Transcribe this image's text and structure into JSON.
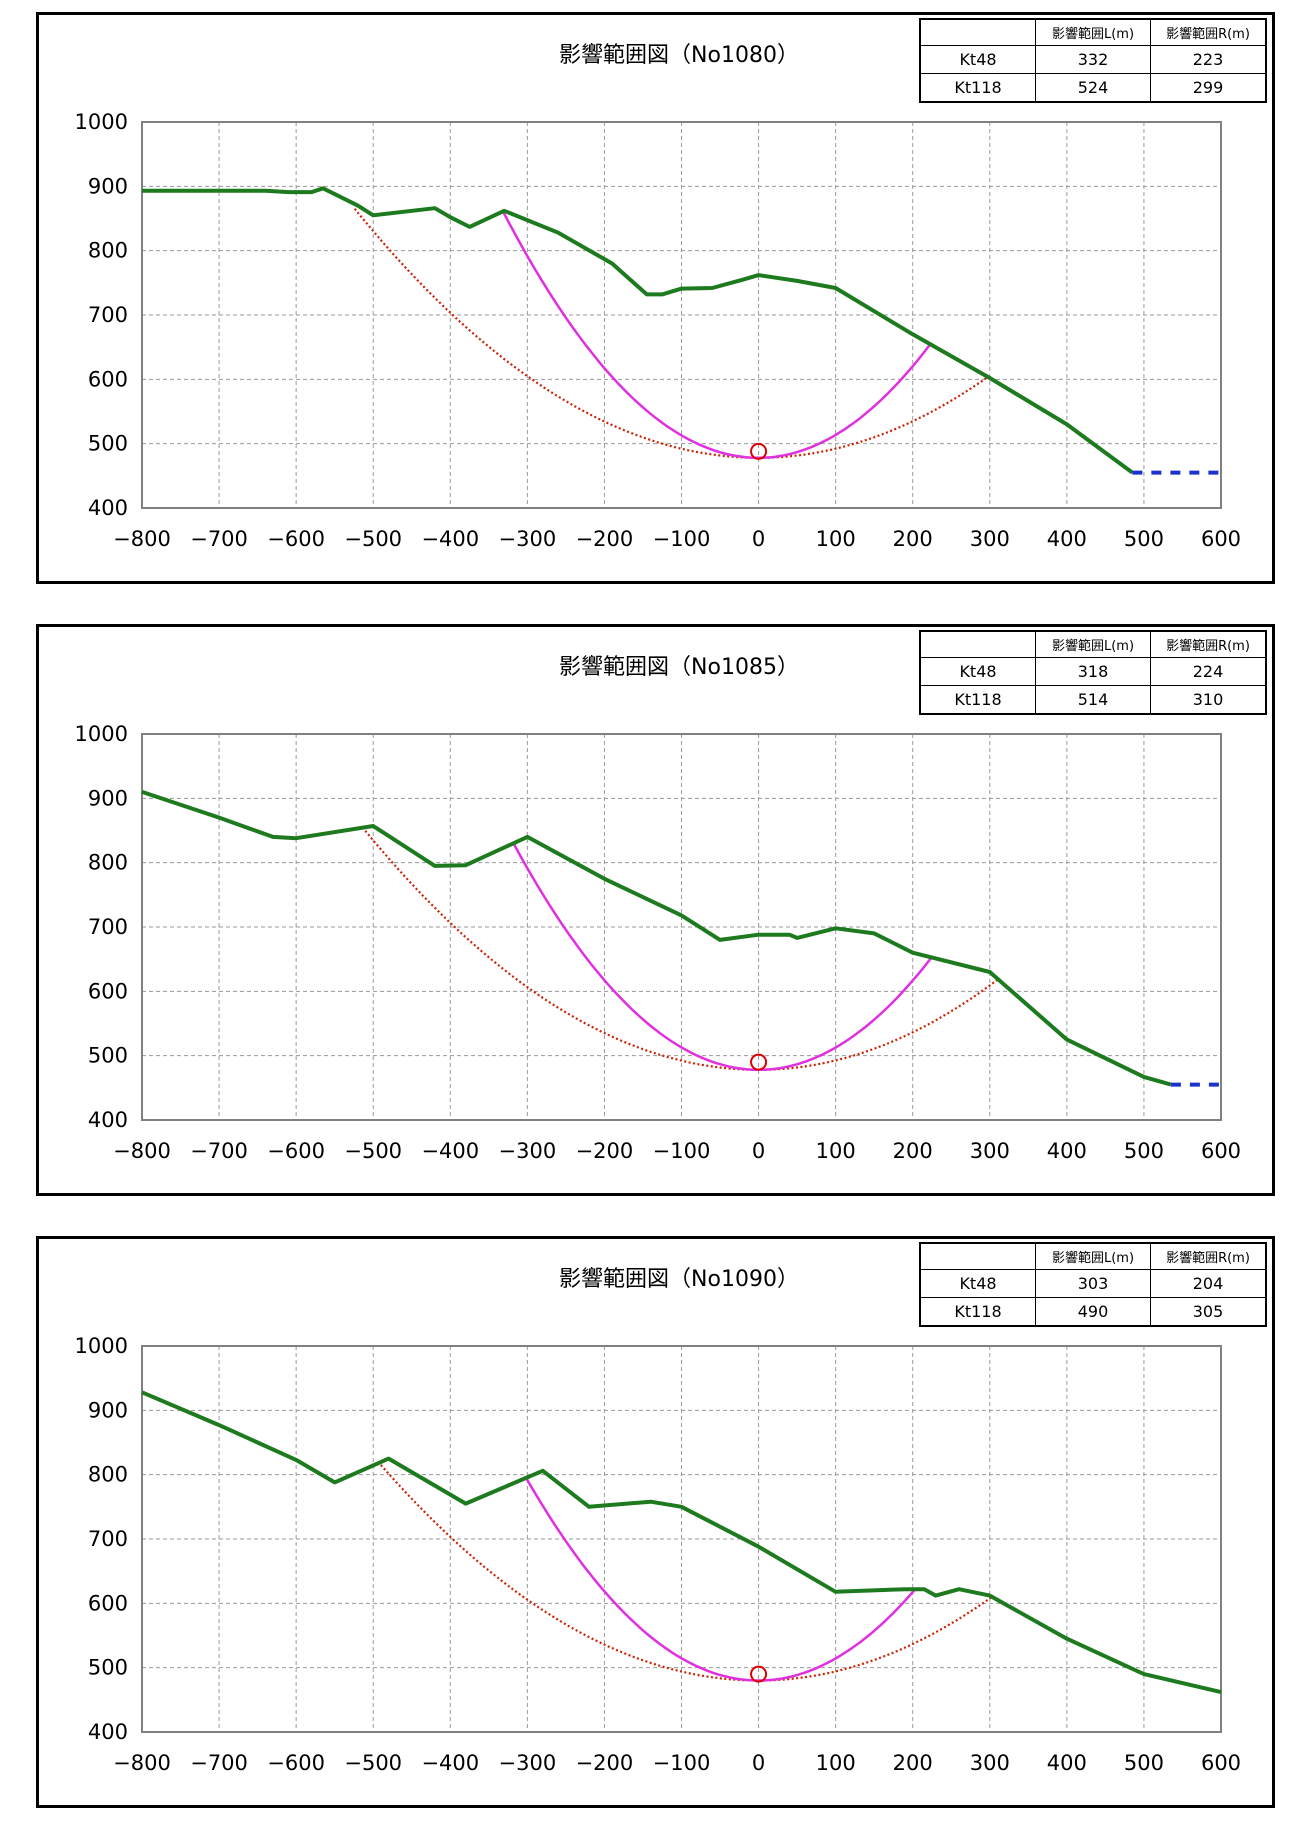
{
  "table_headers": [
    "",
    "影響範囲L(m)",
    "影響範囲R(m)"
  ],
  "colors": {
    "ground": "#1e7a1e",
    "arc_primary": "#e030e0",
    "arc_secondary": "#cc2200",
    "extension": "#1a33cc",
    "grid": "#9a9a9a",
    "center_marker": "#dd0000"
  },
  "chart_data": [
    {
      "type": "line",
      "title": "影響範囲図（No1080）",
      "xlim": [
        -800,
        600
      ],
      "ylim": [
        400,
        1000
      ],
      "x_ticks": [
        -800,
        -700,
        -600,
        -500,
        -400,
        -300,
        -200,
        -100,
        0,
        100,
        200,
        300,
        400,
        500,
        600
      ],
      "y_ticks": [
        400,
        500,
        600,
        700,
        800,
        900,
        1000
      ],
      "grid": true,
      "table": [
        {
          "name": "Kt48",
          "L": 332,
          "R": 223
        },
        {
          "name": "Kt118",
          "L": 524,
          "R": 299
        }
      ],
      "ground_profile": [
        [
          -800,
          893
        ],
        [
          -640,
          893
        ],
        [
          -610,
          891
        ],
        [
          -580,
          891
        ],
        [
          -565,
          897
        ],
        [
          -520,
          870
        ],
        [
          -500,
          855
        ],
        [
          -420,
          866
        ],
        [
          -400,
          852
        ],
        [
          -375,
          837
        ],
        [
          -330,
          862
        ],
        [
          -260,
          828
        ],
        [
          -190,
          780
        ],
        [
          -145,
          732
        ],
        [
          -125,
          732
        ],
        [
          -100,
          741
        ],
        [
          -60,
          742
        ],
        [
          -20,
          755
        ],
        [
          0,
          762
        ],
        [
          50,
          753
        ],
        [
          100,
          742
        ],
        [
          200,
          670
        ],
        [
          300,
          602
        ],
        [
          400,
          530
        ],
        [
          485,
          455
        ]
      ],
      "extension": [
        [
          485,
          455
        ],
        [
          600,
          455
        ]
      ],
      "arc_primary": {
        "x_left": -332,
        "x_right": 223,
        "y_left": 862,
        "y_right": 655,
        "bottom": 478
      },
      "arc_secondary": {
        "x_left": -524,
        "x_right": 299,
        "y_left": 865,
        "y_right": 605,
        "bottom": 478
      },
      "center": [
        0,
        488
      ]
    },
    {
      "type": "line",
      "title": "影響範囲図（No1085）",
      "xlim": [
        -800,
        600
      ],
      "ylim": [
        400,
        1000
      ],
      "x_ticks": [
        -800,
        -700,
        -600,
        -500,
        -400,
        -300,
        -200,
        -100,
        0,
        100,
        200,
        300,
        400,
        500,
        600
      ],
      "y_ticks": [
        400,
        500,
        600,
        700,
        800,
        900,
        1000
      ],
      "grid": true,
      "table": [
        {
          "name": "Kt48",
          "L": 318,
          "R": 224
        },
        {
          "name": "Kt118",
          "L": 514,
          "R": 310
        }
      ],
      "ground_profile": [
        [
          -800,
          910
        ],
        [
          -700,
          870
        ],
        [
          -630,
          840
        ],
        [
          -600,
          838
        ],
        [
          -500,
          857
        ],
        [
          -420,
          795
        ],
        [
          -380,
          796
        ],
        [
          -300,
          840
        ],
        [
          -200,
          775
        ],
        [
          -100,
          718
        ],
        [
          -50,
          680
        ],
        [
          0,
          688
        ],
        [
          40,
          688
        ],
        [
          50,
          683
        ],
        [
          100,
          698
        ],
        [
          150,
          690
        ],
        [
          200,
          660
        ],
        [
          300,
          630
        ],
        [
          400,
          525
        ],
        [
          500,
          467
        ],
        [
          535,
          455
        ]
      ],
      "extension": [
        [
          535,
          455
        ],
        [
          600,
          455
        ]
      ],
      "arc_primary": {
        "x_left": -318,
        "x_right": 224,
        "y_left": 830,
        "y_right": 652,
        "bottom": 478
      },
      "arc_secondary": {
        "x_left": -514,
        "x_right": 310,
        "y_left": 855,
        "y_right": 618,
        "bottom": 478
      },
      "center": [
        0,
        490
      ]
    },
    {
      "type": "line",
      "title": "影響範囲図（No1090）",
      "xlim": [
        -800,
        600
      ],
      "ylim": [
        400,
        1000
      ],
      "x_ticks": [
        -800,
        -700,
        -600,
        -500,
        -400,
        -300,
        -200,
        -100,
        0,
        100,
        200,
        300,
        400,
        500,
        600
      ],
      "y_ticks": [
        400,
        500,
        600,
        700,
        800,
        900,
        1000
      ],
      "grid": true,
      "table": [
        {
          "name": "Kt48",
          "L": 303,
          "R": 204
        },
        {
          "name": "Kt118",
          "L": 490,
          "R": 305
        }
      ],
      "ground_profile": [
        [
          -800,
          928
        ],
        [
          -700,
          877
        ],
        [
          -600,
          823
        ],
        [
          -550,
          788
        ],
        [
          -480,
          825
        ],
        [
          -380,
          755
        ],
        [
          -280,
          806
        ],
        [
          -220,
          750
        ],
        [
          -140,
          758
        ],
        [
          -100,
          750
        ],
        [
          0,
          688
        ],
        [
          100,
          618
        ],
        [
          190,
          622
        ],
        [
          215,
          622
        ],
        [
          230,
          612
        ],
        [
          260,
          622
        ],
        [
          300,
          612
        ],
        [
          400,
          545
        ],
        [
          500,
          490
        ],
        [
          600,
          462
        ]
      ],
      "extension": [],
      "arc_primary": {
        "x_left": -303,
        "x_right": 204,
        "y_left": 798,
        "y_right": 623,
        "bottom": 480
      },
      "arc_secondary": {
        "x_left": -490,
        "x_right": 305,
        "y_left": 815,
        "y_right": 612,
        "bottom": 480
      },
      "center": [
        0,
        490
      ]
    }
  ]
}
